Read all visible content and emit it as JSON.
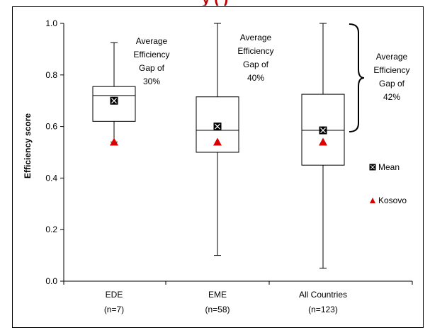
{
  "page": {
    "title_fragment": "y                    (      )"
  },
  "chart_data": {
    "type": "box",
    "ylabel": "Efficiency score",
    "ylim": [
      0.0,
      1.0
    ],
    "yticks": [
      "0.0",
      "0.2",
      "0.4",
      "0.6",
      "0.8",
      "1.0"
    ],
    "categories": [
      {
        "label": "EDE",
        "sublabel": "(n=7)"
      },
      {
        "label": "EME",
        "sublabel": "(n=58)"
      },
      {
        "label": "All Countries",
        "sublabel": "(n=123)"
      }
    ],
    "boxes": [
      {
        "whisker_low": 0.54,
        "q1": 0.62,
        "median": 0.72,
        "q3": 0.755,
        "whisker_high": 0.925,
        "mean": 0.7,
        "kosovo": 0.54
      },
      {
        "whisker_low": 0.1,
        "q1": 0.5,
        "median": 0.585,
        "q3": 0.715,
        "whisker_high": 1.0,
        "mean": 0.6,
        "kosovo": 0.54
      },
      {
        "whisker_low": 0.05,
        "q1": 0.45,
        "median": 0.585,
        "q3": 0.725,
        "whisker_high": 1.0,
        "mean": 0.585,
        "kosovo": 0.54
      }
    ],
    "annotations": [
      {
        "lines": [
          "Average",
          "Efficiency",
          "Gap of",
          "30%"
        ]
      },
      {
        "lines": [
          "Average",
          "Efficiency",
          "Gap of",
          "40%"
        ]
      },
      {
        "lines": [
          "Average",
          "Efficiency",
          "Gap of",
          "42%"
        ]
      }
    ],
    "legend": {
      "position": "right",
      "items": [
        {
          "label": "Mean",
          "marker": "filled-square-x",
          "color": "#000000"
        },
        {
          "label": "Kosovo",
          "marker": "triangle",
          "color": "#d90000"
        }
      ]
    },
    "colors": {
      "box_stroke": "#000000",
      "kosovo": "#d90000",
      "mean": "#000000"
    }
  }
}
